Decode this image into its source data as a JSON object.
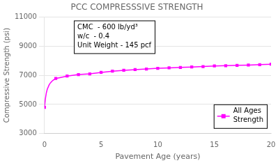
{
  "chart_data": {
    "type": "line",
    "title": "PCC COMPRESSSIVE STRENGTH",
    "x_label": "Pavement Age (years)",
    "y_label": "Compressive Strength (psi)",
    "annotations": [
      "CMC  - 600 lb/yd³",
      "w/c  - 0.4",
      "Unit Weight - 145 pcf"
    ],
    "series": [
      {
        "name": "All Ages\nStrength",
        "color": "#FF00FF",
        "line_style": "solid",
        "marker": "none",
        "x": [
          0,
          0.083,
          0.167,
          0.25,
          0.333,
          0.417,
          0.5,
          0.583,
          0.667,
          0.75,
          0.833,
          0.917,
          1,
          2,
          3,
          4,
          5,
          6,
          7,
          8,
          9,
          10,
          11,
          12,
          13,
          14,
          15,
          16,
          17,
          18,
          19,
          20
        ],
        "values": [
          4800,
          5400,
          5800,
          6050,
          6200,
          6350,
          6450,
          6530,
          6600,
          6650,
          6700,
          6740,
          6780,
          6950,
          7050,
          7100,
          7200,
          7280,
          7340,
          7390,
          7430,
          7480,
          7510,
          7540,
          7570,
          7600,
          7640,
          7660,
          7680,
          7700,
          7730,
          7760
        ]
      },
      {
        "color": "#FF00FF",
        "line_style": "none",
        "marker": "square",
        "x": [
          0,
          1,
          2,
          3,
          4,
          5,
          6,
          7,
          8,
          9,
          10,
          11,
          12,
          13,
          14,
          15,
          16,
          17,
          18,
          19,
          20
        ],
        "values": [
          4800,
          6780,
          6950,
          7050,
          7100,
          7200,
          7280,
          7340,
          7390,
          7430,
          7480,
          7510,
          7540,
          7570,
          7600,
          7640,
          7660,
          7680,
          7700,
          7730,
          7760
        ]
      }
    ],
    "xlim": [
      0,
      20
    ],
    "xticks": [
      0,
      5,
      10,
      15,
      20
    ],
    "ylim": [
      3000,
      11000
    ],
    "yticks": [
      3000,
      5000,
      7000,
      9000,
      11000
    ],
    "grid": "y",
    "legend": "right"
  }
}
